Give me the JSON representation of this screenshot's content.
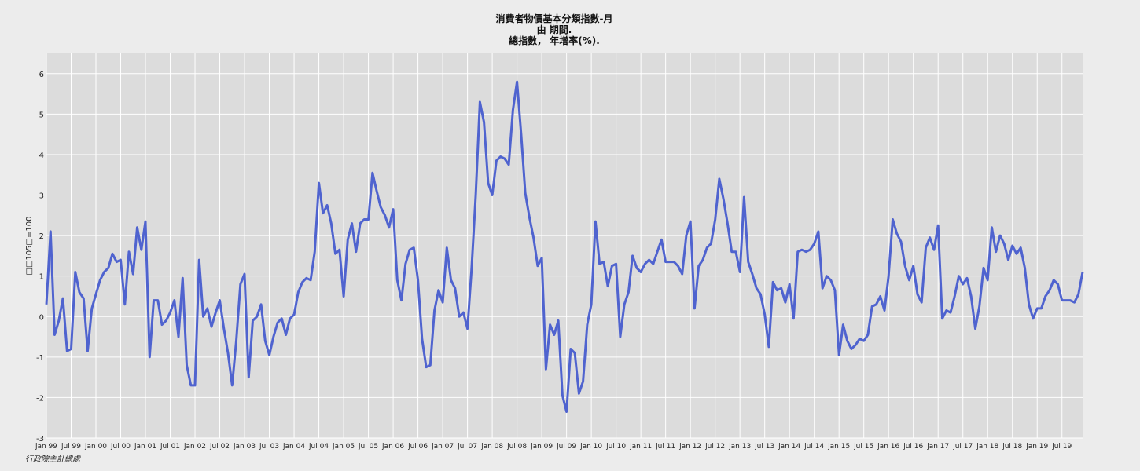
{
  "chart_data": {
    "type": "line",
    "title_lines": [
      "消費者物價基本分類指數-月",
      "由 期間.",
      "總指數， 年增率(%)."
    ],
    "ylabel": "□□105□=100",
    "ylim": [
      -3,
      6.5
    ],
    "yticks": [
      -3,
      -2,
      -1,
      0,
      1,
      2,
      3,
      4,
      5,
      6
    ],
    "xlim": [
      0,
      251
    ],
    "xticks": [
      {
        "label": "jan 99",
        "i": 0
      },
      {
        "label": "jul 99",
        "i": 6
      },
      {
        "label": "jan 00",
        "i": 12
      },
      {
        "label": "jul 00",
        "i": 18
      },
      {
        "label": "jan 01",
        "i": 24
      },
      {
        "label": "jul 01",
        "i": 30
      },
      {
        "label": "jan 02",
        "i": 36
      },
      {
        "label": "jul 02",
        "i": 42
      },
      {
        "label": "jan 03",
        "i": 48
      },
      {
        "label": "jul 03",
        "i": 54
      },
      {
        "label": "jan 04",
        "i": 60
      },
      {
        "label": "jul 04",
        "i": 66
      },
      {
        "label": "jan 05",
        "i": 72
      },
      {
        "label": "jul 05",
        "i": 78
      },
      {
        "label": "jan 06",
        "i": 84
      },
      {
        "label": "jul 06",
        "i": 90
      },
      {
        "label": "jan 07",
        "i": 96
      },
      {
        "label": "jul 07",
        "i": 102
      },
      {
        "label": "jan 08",
        "i": 108
      },
      {
        "label": "jul 08",
        "i": 114
      },
      {
        "label": "jan 09",
        "i": 120
      },
      {
        "label": "jul 09",
        "i": 126
      },
      {
        "label": "jan 10",
        "i": 132
      },
      {
        "label": "jul 10",
        "i": 138
      },
      {
        "label": "jan 11",
        "i": 144
      },
      {
        "label": "jul 11",
        "i": 150
      },
      {
        "label": "jan 12",
        "i": 156
      },
      {
        "label": "jul 12",
        "i": 162
      },
      {
        "label": "jan 13",
        "i": 168
      },
      {
        "label": "jul 13",
        "i": 174
      },
      {
        "label": "jan 14",
        "i": 180
      },
      {
        "label": "jul 14",
        "i": 186
      },
      {
        "label": "jan 15",
        "i": 192
      },
      {
        "label": "jul 15",
        "i": 198
      },
      {
        "label": "jan 16",
        "i": 204
      },
      {
        "label": "jul 16",
        "i": 210
      },
      {
        "label": "jan 17",
        "i": 216
      },
      {
        "label": "jul 17",
        "i": 222
      },
      {
        "label": "jan 18",
        "i": 228
      },
      {
        "label": "jul 18",
        "i": 234
      },
      {
        "label": "jan 19",
        "i": 240
      },
      {
        "label": "jul 19",
        "i": 246
      }
    ],
    "grid": true,
    "line_color": "#4f63cf",
    "background": "#dcdcdc",
    "series": [
      {
        "values": [
          0.3,
          2.1,
          -0.45,
          -0.1,
          0.45,
          -0.85,
          -0.8,
          1.1,
          0.6,
          0.45,
          -0.85,
          0.2,
          0.55,
          0.9,
          1.1,
          1.2,
          1.55,
          1.35,
          1.4,
          0.3,
          1.6,
          1.05,
          2.2,
          1.65,
          2.35,
          -1.0,
          0.4,
          0.4,
          -0.2,
          -0.1,
          0.1,
          0.4,
          -0.5,
          0.95,
          -1.2,
          -1.7,
          -1.7,
          1.4,
          0.0,
          0.2,
          -0.25,
          0.1,
          0.4,
          -0.3,
          -0.9,
          -1.7,
          -0.6,
          0.8,
          1.05,
          -1.5,
          -0.1,
          0.0,
          0.3,
          -0.6,
          -0.95,
          -0.5,
          -0.15,
          -0.05,
          -0.45,
          -0.05,
          0.05,
          0.6,
          0.85,
          0.95,
          0.9,
          1.6,
          3.3,
          2.55,
          2.75,
          2.3,
          1.55,
          1.65,
          0.5,
          1.9,
          2.3,
          1.6,
          2.3,
          2.4,
          2.4,
          3.55,
          3.1,
          2.7,
          2.5,
          2.2,
          2.65,
          0.9,
          0.4,
          1.3,
          1.65,
          1.7,
          0.9,
          -0.55,
          -1.25,
          -1.2,
          0.15,
          0.65,
          0.35,
          1.7,
          0.9,
          0.7,
          0.0,
          0.1,
          -0.3,
          1.2,
          3.0,
          5.3,
          4.8,
          3.3,
          3.0,
          3.85,
          3.95,
          3.9,
          3.75,
          5.1,
          5.8,
          4.5,
          3.05,
          2.45,
          1.95,
          1.25,
          1.45,
          -1.3,
          -0.2,
          -0.45,
          -0.1,
          -1.95,
          -2.35,
          -0.8,
          -0.9,
          -1.9,
          -1.6,
          -0.2,
          0.3,
          2.35,
          1.3,
          1.35,
          0.75,
          1.25,
          1.3,
          -0.5,
          0.3,
          0.6,
          1.5,
          1.2,
          1.1,
          1.3,
          1.4,
          1.3,
          1.6,
          1.9,
          1.35,
          1.35,
          1.35,
          1.25,
          1.05,
          2.0,
          2.35,
          0.2,
          1.25,
          1.4,
          1.7,
          1.8,
          2.4,
          3.4,
          2.9,
          2.3,
          1.6,
          1.6,
          1.1,
          2.95,
          1.35,
          1.05,
          0.7,
          0.55,
          0.05,
          -0.75,
          0.85,
          0.65,
          0.7,
          0.35,
          0.8,
          -0.05,
          1.6,
          1.65,
          1.6,
          1.65,
          1.8,
          2.1,
          0.7,
          1.0,
          0.9,
          0.65,
          -0.95,
          -0.2,
          -0.6,
          -0.8,
          -0.7,
          -0.55,
          -0.6,
          -0.45,
          0.25,
          0.3,
          0.5,
          0.15,
          1.0,
          2.4,
          2.05,
          1.85,
          1.25,
          0.9,
          1.25,
          0.55,
          0.35,
          1.7,
          1.95,
          1.65,
          2.25,
          -0.05,
          0.15,
          0.1,
          0.5,
          1.0,
          0.8,
          0.95,
          0.5,
          -0.3,
          0.25,
          1.2,
          0.9,
          2.2,
          1.6,
          2.0,
          1.8,
          1.4,
          1.75,
          1.55,
          1.7,
          1.2,
          0.3,
          -0.05,
          0.2,
          0.2,
          0.5,
          0.65,
          0.9,
          0.8,
          0.4,
          0.4,
          0.4,
          0.35,
          0.55,
          1.1
        ]
      }
    ]
  },
  "source_note": "行政院主計總處"
}
